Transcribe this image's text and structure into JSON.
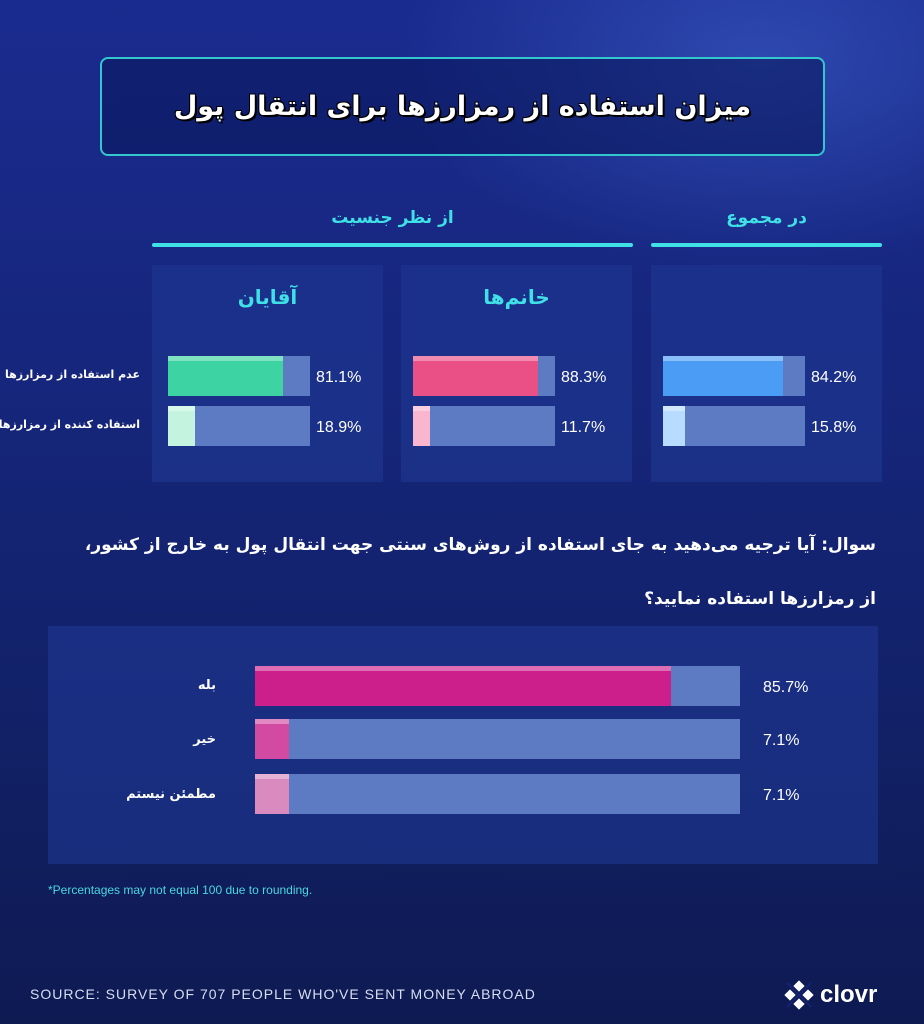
{
  "title": "میزان استفاده از رمزارزها برای انتقال پول",
  "sections": {
    "overall": "در مجموع",
    "by_gender": "از نظر جنسیت"
  },
  "chart_data": [
    {
      "type": "bar",
      "orientation": "horizontal",
      "categories": [
        "عدم استفاده از رمزارزها",
        "استفاده کننده از رمزارزها"
      ],
      "series": [
        {
          "name": "در مجموع",
          "values": [
            84.2,
            15.8
          ],
          "labels": [
            "84.2%",
            "15.8%"
          ],
          "colors": [
            "#4a9cf4",
            "#b8dcff"
          ]
        },
        {
          "name": "خانم‌ها",
          "values": [
            88.3,
            11.7
          ],
          "labels": [
            "88.3%",
            "11.7%"
          ],
          "colors": [
            "#ea4f86",
            "#f9b6ce"
          ]
        },
        {
          "name": "آقایان",
          "values": [
            81.1,
            18.9
          ],
          "labels": [
            "81.1%",
            "18.9%"
          ],
          "colors": [
            "#3ed3a2",
            "#c4f4e0"
          ]
        }
      ],
      "xlim": [
        0,
        100
      ],
      "unit": "%"
    },
    {
      "type": "bar",
      "orientation": "horizontal",
      "question_line1": "سوال: آیا ترجیه می‌دهید به جای استفاده از روش‌های سنتی جهت انتقال پول به خارج از کشور،",
      "question_line2": "از رمزارزها استفاده نمایید؟",
      "categories": [
        "بله",
        "خیر",
        "مطمئن نیستم"
      ],
      "values": [
        85.7,
        7.1,
        7.1
      ],
      "labels": [
        "85.7%",
        "7.1%",
        "7.1%"
      ],
      "colors": [
        "#cc1f8c",
        "#d24aa1",
        "#d98bc0"
      ],
      "xlim": [
        0,
        100
      ],
      "unit": "%"
    }
  ],
  "footnote": "*Percentages may not equal 100 due to rounding.",
  "source": "SOURCE: SURVEY OF 707 PEOPLE WHO'VE SENT MONEY ABROAD",
  "logo": {
    "text": "clovr",
    "icon": "clover-icon"
  },
  "colors": {
    "accent": "#3fe0e6",
    "track": "#5d7bc2"
  }
}
